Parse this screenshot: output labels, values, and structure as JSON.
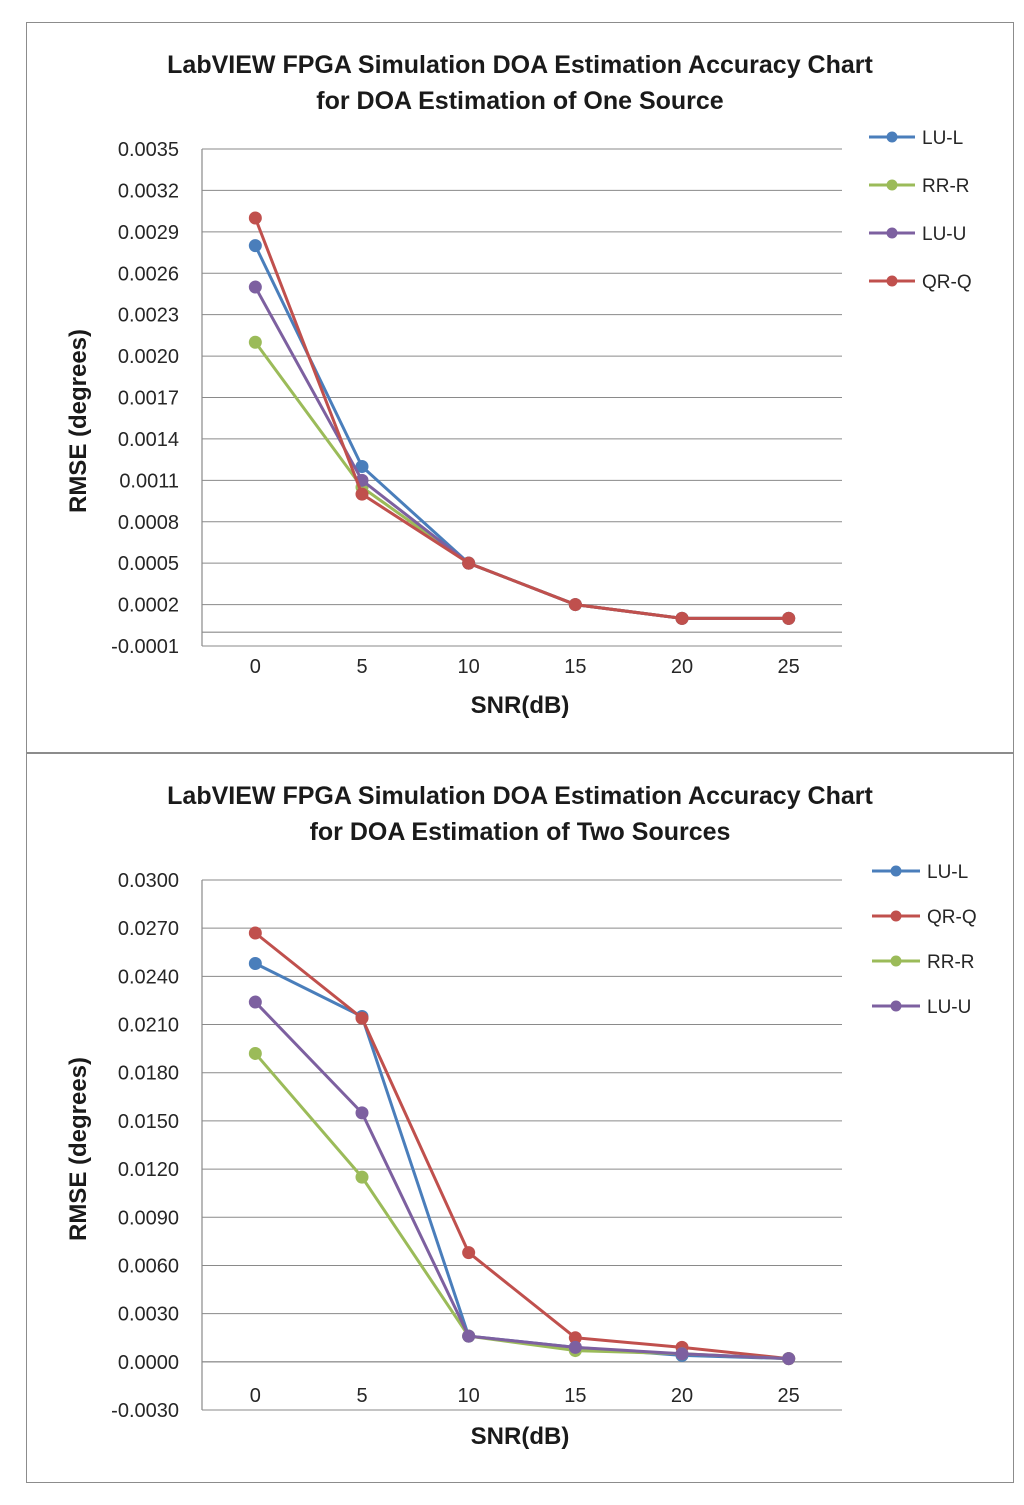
{
  "chart_data": [
    {
      "type": "line",
      "title": "LabVIEW FPGA Simulation DOA Estimation Accuracy Chart",
      "subtitle": "for DOA Estimation of One Source",
      "xlabel": "SNR(dB)",
      "ylabel": "RMSE (degrees)",
      "x": [
        0,
        5,
        10,
        15,
        20,
        25
      ],
      "xlim": [
        -2.5,
        27.5
      ],
      "ylim": [
        -0.0001,
        0.0035
      ],
      "ytick_values": [
        -0.0001,
        0.0002,
        0.0005,
        0.0008,
        0.0011,
        0.0014,
        0.0017,
        0.002,
        0.0023,
        0.0026,
        0.0029,
        0.0032,
        0.0035
      ],
      "ytick_labels": [
        "-0.0001",
        "0.0002",
        "0.0005",
        "0.0008",
        "0.0011",
        "0.0014",
        "0.0017",
        "0.0020",
        "0.0023",
        "0.0026",
        "0.0029",
        "0.0032",
        "0.0035"
      ],
      "xtick_labels": [
        "0",
        "5",
        "10",
        "15",
        "20",
        "25"
      ],
      "grid": true,
      "legend_position": "right",
      "series": [
        {
          "name": "LU-L",
          "color": "#4a7ebb",
          "values": [
            0.0028,
            0.0012,
            0.0005,
            0.0002,
            0.0001,
            0.0001
          ]
        },
        {
          "name": "RR-R",
          "color": "#9bbb59",
          "values": [
            0.0021,
            0.00105,
            0.0005,
            0.0002,
            0.0001,
            0.0001
          ]
        },
        {
          "name": "LU-U",
          "color": "#7d60a0",
          "values": [
            0.0025,
            0.0011,
            0.0005,
            0.0002,
            0.0001,
            0.0001
          ]
        },
        {
          "name": "QR-Q",
          "color": "#c0504d",
          "values": [
            0.003,
            0.001,
            0.0005,
            0.0002,
            0.0001,
            0.0001
          ]
        }
      ]
    },
    {
      "type": "line",
      "title": "LabVIEW FPGA Simulation DOA Estimation Accuracy Chart",
      "subtitle": "for DOA Estimation of Two Sources",
      "xlabel": "SNR(dB)",
      "ylabel": "RMSE (degrees)",
      "x": [
        0,
        5,
        10,
        15,
        20,
        25
      ],
      "xlim": [
        -2.5,
        27.5
      ],
      "ylim": [
        -0.003,
        0.03
      ],
      "ytick_values": [
        -0.003,
        0.0,
        0.003,
        0.006,
        0.009,
        0.012,
        0.015,
        0.018,
        0.021,
        0.024,
        0.027,
        0.03
      ],
      "ytick_labels": [
        "-0.0030",
        "0.0000",
        "0.0030",
        "0.0060",
        "0.0090",
        "0.0120",
        "0.0150",
        "0.0180",
        "0.0210",
        "0.0240",
        "0.0270",
        "0.0300"
      ],
      "xtick_labels": [
        "0",
        "5",
        "10",
        "15",
        "20",
        "25"
      ],
      "grid": true,
      "legend_position": "right",
      "series": [
        {
          "name": "LU-L",
          "color": "#4a7ebb",
          "values": [
            0.0248,
            0.0215,
            0.0016,
            0.0009,
            0.0004,
            0.0002
          ]
        },
        {
          "name": "QR-Q",
          "color": "#c0504d",
          "values": [
            0.0267,
            0.0214,
            0.0068,
            0.0015,
            0.0009,
            0.0002
          ]
        },
        {
          "name": "RR-R",
          "color": "#9bbb59",
          "values": [
            0.0192,
            0.0115,
            0.0016,
            0.0007,
            0.0005,
            0.0002
          ]
        },
        {
          "name": "LU-U",
          "color": "#7d60a0",
          "values": [
            0.0224,
            0.0155,
            0.0016,
            0.0009,
            0.0005,
            0.0002
          ]
        }
      ]
    }
  ]
}
